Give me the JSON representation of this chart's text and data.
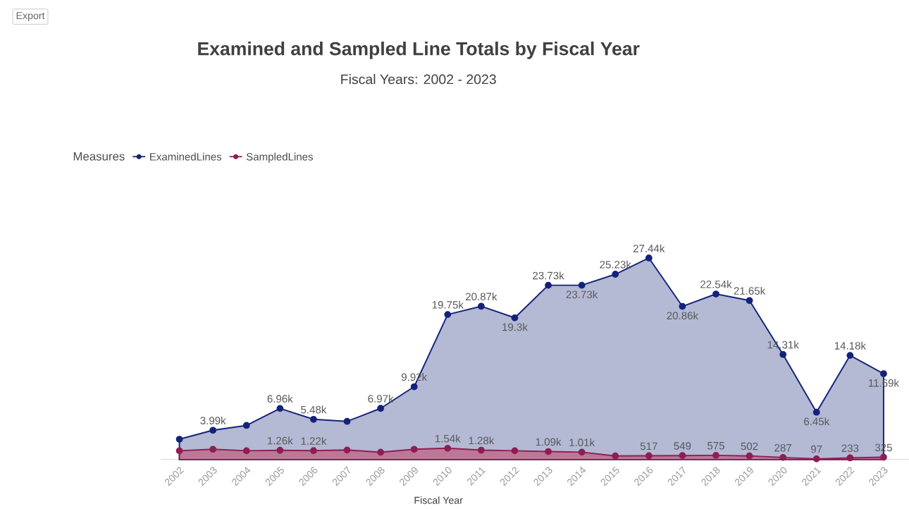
{
  "chart_data": {
    "type": "area",
    "title": "Examined and Sampled Line Totals by Fiscal Year",
    "subtitle": "Fiscal Years: 2002 - 2023",
    "xlabel": "Fiscal Year",
    "legend_title": "Measures",
    "legend": "top left",
    "annotations": [
      "Export"
    ],
    "categories": [
      "2002",
      "2003",
      "2004",
      "2005",
      "2006",
      "2007",
      "2008",
      "2009",
      "2010",
      "2011",
      "2012",
      "2013",
      "2014",
      "2015",
      "2016",
      "2017",
      "2018",
      "2019",
      "2020",
      "2021",
      "2022",
      "2023"
    ],
    "series": [
      {
        "name": "ExaminedLines",
        "color": "#14237a",
        "values": [
          2770,
          3990,
          4650,
          6960,
          5480,
          5200,
          6970,
          9920,
          19750,
          20870,
          19300,
          23730,
          23730,
          25230,
          27440,
          20860,
          22540,
          21650,
          14310,
          6450,
          14180,
          11690
        ],
        "value_labels": [
          null,
          "3.99k",
          null,
          "6.96k",
          "5.48k",
          null,
          "6.97k",
          "9.92k",
          "19.75k",
          "20.87k",
          "19.3k",
          "23.73k",
          "23.73k",
          "25.23k",
          "27.44k",
          "20.86k",
          "22.54k",
          "21.65k",
          "14.31k",
          "6.45k",
          "14.18k",
          "11.69k"
        ]
      },
      {
        "name": "SampledLines",
        "color": "#8e1e52",
        "values": [
          1200,
          1400,
          1200,
          1260,
          1220,
          1300,
          1000,
          1400,
          1540,
          1280,
          1200,
          1090,
          1010,
          500,
          517,
          549,
          575,
          502,
          287,
          97,
          233,
          325
        ],
        "value_labels": [
          null,
          null,
          null,
          "1.26k",
          "1.22k",
          null,
          null,
          null,
          "1.54k",
          "1.28k",
          null,
          "1.09k",
          "1.01k",
          null,
          "517",
          "549",
          "575",
          "502",
          "287",
          "97",
          "233",
          "325"
        ]
      }
    ],
    "marker": "circle",
    "line_style": "solid"
  }
}
